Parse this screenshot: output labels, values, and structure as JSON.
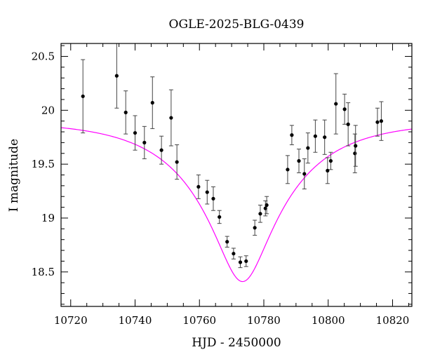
{
  "chart_data": {
    "type": "scatter",
    "title": "OGLE-2025-BLG-0439",
    "xlabel": "HJD - 2450000",
    "ylabel": "I magnitude",
    "xlim": [
      10717,
      10826
    ],
    "ylim": [
      20.62,
      18.18
    ],
    "y_inverted": true,
    "x_major_ticks": [
      10720,
      10740,
      10760,
      10780,
      10800,
      10820
    ],
    "x_tick_labels": [
      "10720",
      "10740",
      "10760",
      "10780",
      "10800",
      "10820"
    ],
    "y_major_ticks": [
      18.5,
      19,
      19.5,
      20,
      20.5
    ],
    "y_tick_labels": [
      "18.5",
      "19",
      "19.5",
      "20",
      "20.5"
    ],
    "grid": false,
    "point_color": "#000000",
    "model_color": "#ff00ff",
    "points": [
      {
        "x": 10723.8,
        "y": 20.13,
        "err": 0.34
      },
      {
        "x": 10734.3,
        "y": 20.32,
        "err": 0.3
      },
      {
        "x": 10737.1,
        "y": 19.98,
        "err": 0.2
      },
      {
        "x": 10740.0,
        "y": 19.79,
        "err": 0.16
      },
      {
        "x": 10742.9,
        "y": 19.7,
        "err": 0.15
      },
      {
        "x": 10745.4,
        "y": 20.07,
        "err": 0.24
      },
      {
        "x": 10748.2,
        "y": 19.63,
        "err": 0.13
      },
      {
        "x": 10751.2,
        "y": 19.93,
        "err": 0.26
      },
      {
        "x": 10753.0,
        "y": 19.52,
        "err": 0.16
      },
      {
        "x": 10759.7,
        "y": 19.29,
        "err": 0.11
      },
      {
        "x": 10762.4,
        "y": 19.24,
        "err": 0.11
      },
      {
        "x": 10764.3,
        "y": 19.18,
        "err": 0.11
      },
      {
        "x": 10766.2,
        "y": 19.01,
        "err": 0.06
      },
      {
        "x": 10768.6,
        "y": 18.78,
        "err": 0.05
      },
      {
        "x": 10770.6,
        "y": 18.67,
        "err": 0.05
      },
      {
        "x": 10772.7,
        "y": 18.59,
        "err": 0.05
      },
      {
        "x": 10774.5,
        "y": 18.6,
        "err": 0.05
      },
      {
        "x": 10777.2,
        "y": 18.91,
        "err": 0.07
      },
      {
        "x": 10778.9,
        "y": 19.04,
        "err": 0.08
      },
      {
        "x": 10780.5,
        "y": 19.09,
        "err": 0.07
      },
      {
        "x": 10780.9,
        "y": 19.12,
        "err": 0.08
      },
      {
        "x": 10787.4,
        "y": 19.45,
        "err": 0.13
      },
      {
        "x": 10788.7,
        "y": 19.77,
        "err": 0.09
      },
      {
        "x": 10790.9,
        "y": 19.53,
        "err": 0.11
      },
      {
        "x": 10792.6,
        "y": 19.41,
        "err": 0.14
      },
      {
        "x": 10793.7,
        "y": 19.65,
        "err": 0.14
      },
      {
        "x": 10796.0,
        "y": 19.76,
        "err": 0.15
      },
      {
        "x": 10798.9,
        "y": 19.75,
        "err": 0.16
      },
      {
        "x": 10799.8,
        "y": 19.44,
        "err": 0.12
      },
      {
        "x": 10800.8,
        "y": 19.53,
        "err": 0.08
      },
      {
        "x": 10802.4,
        "y": 20.06,
        "err": 0.28
      },
      {
        "x": 10805.1,
        "y": 20.01,
        "err": 0.14
      },
      {
        "x": 10806.2,
        "y": 19.87,
        "err": 0.2
      },
      {
        "x": 10808.3,
        "y": 19.6,
        "err": 0.18
      },
      {
        "x": 10808.5,
        "y": 19.67,
        "err": 0.19
      },
      {
        "x": 10815.3,
        "y": 19.89,
        "err": 0.13
      },
      {
        "x": 10816.5,
        "y": 19.9,
        "err": 0.18
      }
    ],
    "model": {
      "type": "point-lens microlensing fit",
      "t0": 10773.4,
      "u0": 0.26,
      "tE": 28,
      "baseline_mag": 19.9
    }
  }
}
